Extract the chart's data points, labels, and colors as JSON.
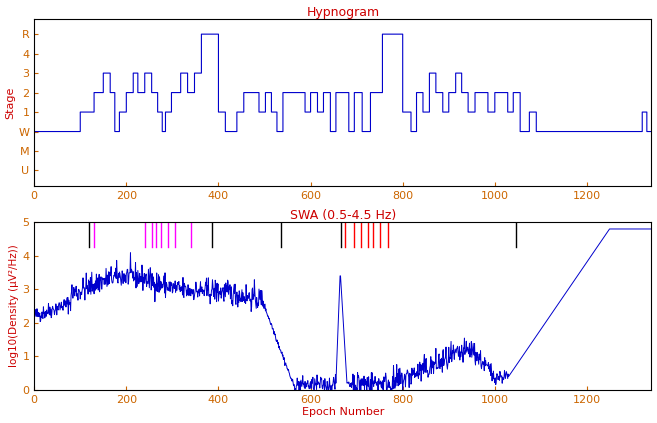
{
  "title1": "Hypnogram",
  "title2": "SWA (0.5-4.5 Hz)",
  "xlabel": "Epoch Number",
  "ylabel1": "Stage",
  "ylabel2": "log10(Density (μV²/Hz))",
  "title_color": "#cc0000",
  "label_color": "#cc0000",
  "tick_label_color": "#cc6600",
  "line_color": "#0000cc",
  "background_color": "#ffffff",
  "xlim": [
    0,
    1340
  ],
  "ylim2": [
    0,
    5
  ],
  "xticks": [
    0,
    200,
    400,
    600,
    800,
    1000,
    1200
  ],
  "pink_lines": [
    130,
    240,
    255,
    265,
    275,
    290,
    305,
    340
  ],
  "black_lines_top": [
    120,
    385,
    535,
    665,
    1045
  ],
  "red_lines": [
    675,
    695,
    710,
    725,
    735,
    750,
    768
  ],
  "seed": 42
}
